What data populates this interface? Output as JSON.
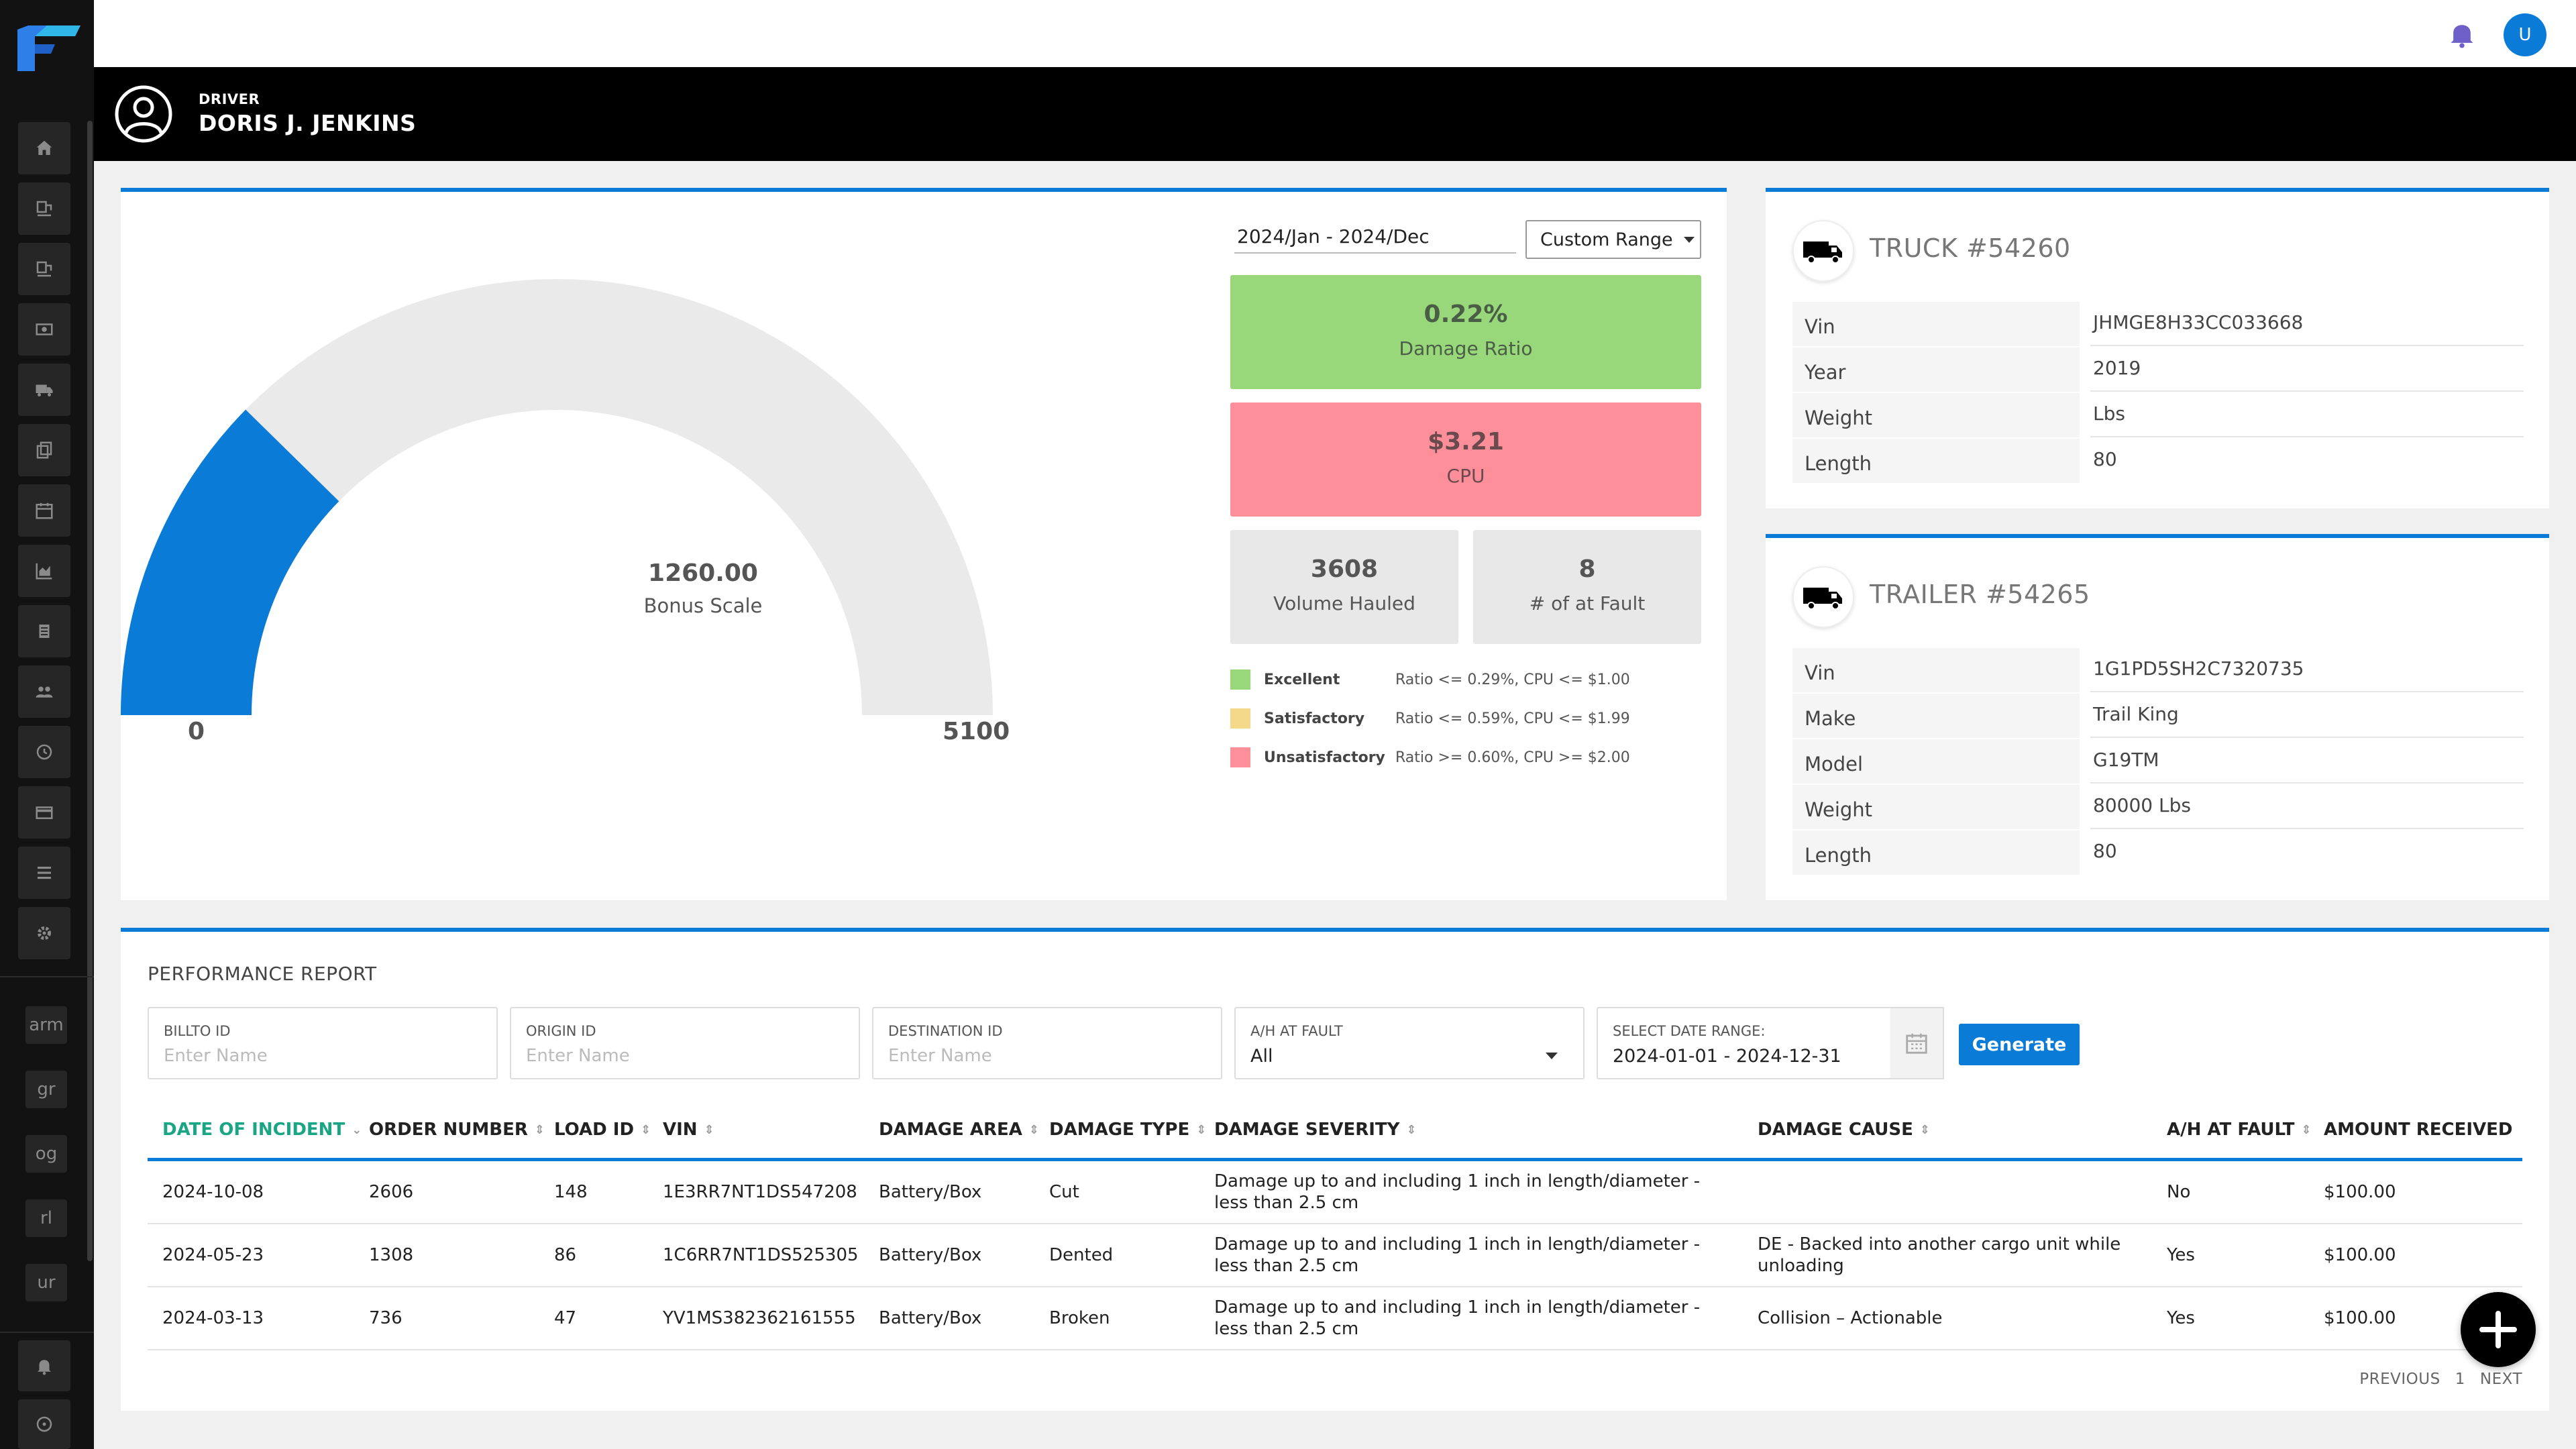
{
  "driver": {
    "role": "DRIVER",
    "name": "DORIS J. JENKINS"
  },
  "sidebar": {
    "icons": [
      "home-icon",
      "load-board-icon",
      "load-board-alt-icon",
      "money-icon",
      "truck-icon",
      "documents-icon",
      "calendar-icon",
      "chart-icon",
      "list-icon",
      "users-icon",
      "clock-icon",
      "card-icon",
      "menu-icon",
      "settings-icon"
    ],
    "short_items": [
      "arm",
      "gr",
      "og",
      "rl",
      "ur"
    ]
  },
  "gauge": {
    "value": "1260.00",
    "value_num": 1260,
    "min": 0,
    "max": 5100,
    "label": "Bonus Scale",
    "min_label": "0",
    "max_label": "5100",
    "color": "#0a7bd6"
  },
  "stats": {
    "date_range": "2024/Jan - 2024/Dec",
    "range_button": "Custom Range",
    "damage_ratio_value": "0.22%",
    "damage_ratio_label": "Damage Ratio",
    "cpu_value": "$3.21",
    "cpu_label": "CPU",
    "volume_value": "3608",
    "volume_label": "Volume Hauled",
    "fault_value": "8",
    "fault_label": "# of at Fault"
  },
  "legend": [
    {
      "name": "Excellent",
      "desc": "Ratio <= 0.29%, CPU <= $1.00",
      "color": "#98d87a"
    },
    {
      "name": "Satisfactory",
      "desc": "Ratio <= 0.59%, CPU <= $1.99",
      "color": "#f5d98a"
    },
    {
      "name": "Unsatisfactory",
      "desc": "Ratio >= 0.60%, CPU >= $2.00",
      "color": "#fd8f9b"
    }
  ],
  "truck": {
    "title": "TRUCK #54260",
    "fields": [
      {
        "k": "Vin",
        "v": "JHMGE8H33CC033668"
      },
      {
        "k": "Year",
        "v": "2019"
      },
      {
        "k": "Weight",
        "v": "Lbs"
      },
      {
        "k": "Length",
        "v": "80"
      }
    ]
  },
  "trailer": {
    "title": "TRAILER #54265",
    "fields": [
      {
        "k": "Vin",
        "v": "1G1PD5SH2C7320735"
      },
      {
        "k": "Make",
        "v": "Trail King"
      },
      {
        "k": "Model",
        "v": "G19TM"
      },
      {
        "k": "Weight",
        "v": "80000 Lbs"
      },
      {
        "k": "Length",
        "v": "80"
      }
    ]
  },
  "report": {
    "title": "PERFORMANCE REPORT",
    "filters": {
      "billto_label": "BILLTO ID",
      "billto_placeholder": "Enter Name",
      "origin_label": "ORIGIN ID",
      "origin_placeholder": "Enter Name",
      "dest_label": "DESTINATION ID",
      "dest_placeholder": "Enter Name",
      "fault_label": "A/H AT FAULT",
      "fault_value": "All",
      "date_label": "SELECT DATE RANGE:",
      "date_value": "2024-01-01 - 2024-12-31"
    },
    "generate_label": "Generate",
    "columns": [
      "DATE OF INCIDENT",
      "ORDER NUMBER",
      "LOAD ID",
      "VIN",
      "DAMAGE AREA",
      "DAMAGE TYPE",
      "DAMAGE SEVERITY",
      "DAMAGE CAUSE",
      "A/H AT FAULT",
      "AMOUNT RECEIVED"
    ],
    "rows": [
      {
        "date": "2024-10-08",
        "order": "2606",
        "load": "148",
        "vin": "1E3RR7NT1DS547208",
        "area": "Battery/Box",
        "type": "Cut",
        "severity": "Damage up to and including 1 inch in length/diameter - less than 2.5 cm",
        "cause": "",
        "fault": "No",
        "amount": "$100.00"
      },
      {
        "date": "2024-05-23",
        "order": "1308",
        "load": "86",
        "vin": "1C6RR7NT1DS525305",
        "area": "Battery/Box",
        "type": "Dented",
        "severity": "Damage up to and including 1 inch in length/diameter - less than 2.5 cm",
        "cause": "DE - Backed into another cargo unit while unloading",
        "fault": "Yes",
        "amount": "$100.00"
      },
      {
        "date": "2024-03-13",
        "order": "736",
        "load": "47",
        "vin": "YV1MS382362161555",
        "area": "Battery/Box",
        "type": "Broken",
        "severity": "Damage up to and including 1 inch in length/diameter - less than 2.5 cm",
        "cause": "Collision – Actionable",
        "fault": "Yes",
        "amount": "$100.00"
      }
    ],
    "pager": {
      "prev": "PREVIOUS",
      "page": "1",
      "next": "NEXT"
    }
  }
}
